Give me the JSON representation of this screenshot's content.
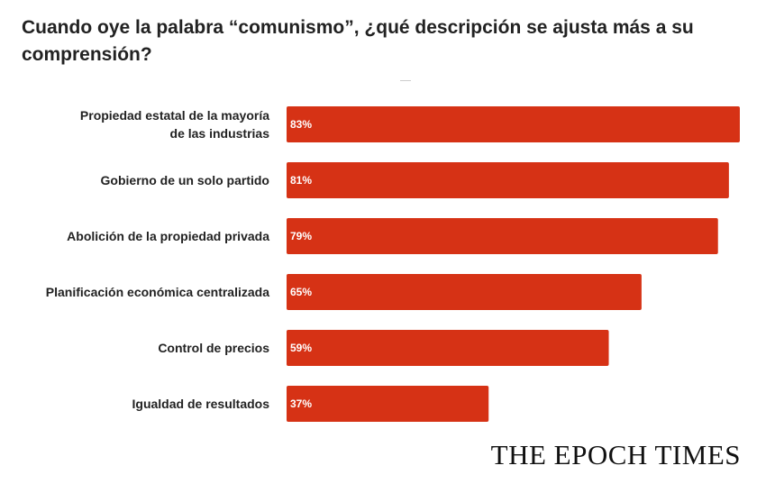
{
  "chart_data": {
    "type": "bar",
    "orientation": "horizontal",
    "title": "Cuando oye la palabra “comunismo”, ¿qué descripción se ajusta más a su comprensión?",
    "categories": [
      [
        "Propiedad estatal de la mayoría",
        "de las industrias"
      ],
      [
        "Gobierno de un solo partido"
      ],
      [
        "Abolición de la propiedad privada"
      ],
      [
        "Planificación económica centralizada"
      ],
      [
        "Control de precios"
      ],
      [
        "Igualdad de resultados"
      ]
    ],
    "values": [
      83,
      81,
      79,
      65,
      59,
      37
    ],
    "value_labels": [
      "83%",
      "81%",
      "79%",
      "65%",
      "59%",
      "37%"
    ],
    "unit": "%",
    "bar_color": "#D63215",
    "xlabel": "",
    "ylabel": "",
    "legend": "none"
  },
  "source": {
    "brand": "THE EPOCH TIMES"
  }
}
